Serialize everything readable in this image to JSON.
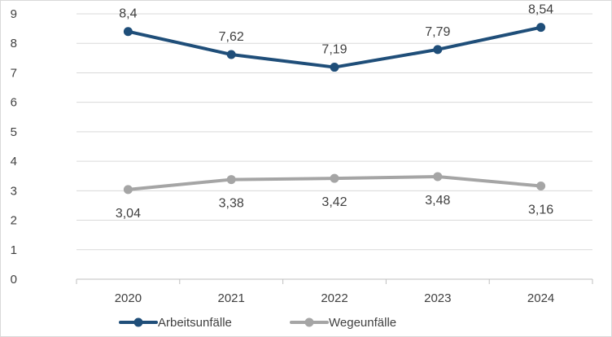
{
  "chart_data": {
    "type": "line",
    "title": "",
    "xlabel": "",
    "ylabel": "",
    "categories": [
      "2020",
      "2021",
      "2022",
      "2023",
      "2024"
    ],
    "ylim": [
      0,
      9
    ],
    "y_ticks": [
      0,
      1,
      2,
      3,
      4,
      5,
      6,
      7,
      8,
      9
    ],
    "grid": "horizontal",
    "legend_position": "bottom",
    "series": [
      {
        "name": "Arbeitsunfälle",
        "color": "#1f4e79",
        "values": [
          8.4,
          7.62,
          7.19,
          7.79,
          8.54
        ],
        "labels": [
          "8,4",
          "7,62",
          "7,19",
          "7,79",
          "8,54"
        ],
        "label_position": "above"
      },
      {
        "name": "Wegeunfälle",
        "color": "#a5a5a5",
        "values": [
          3.04,
          3.38,
          3.42,
          3.48,
          3.16
        ],
        "labels": [
          "3,04",
          "3,38",
          "3,42",
          "3,48",
          "3,16"
        ],
        "label_position": "below"
      }
    ]
  }
}
